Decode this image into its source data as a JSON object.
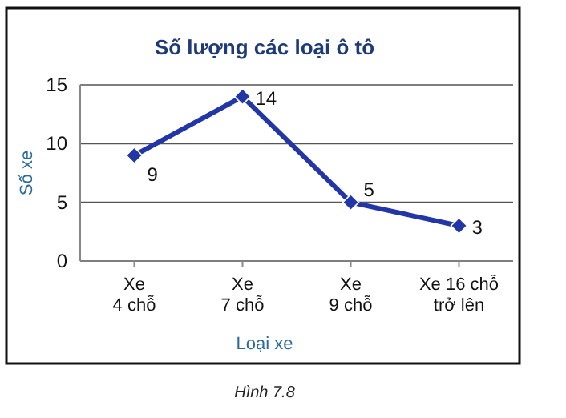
{
  "chart_data": {
    "type": "line",
    "title": "Số lượng các loại ô tô",
    "xlabel": "Loại xe",
    "ylabel": "Số xe",
    "annotations": [
      "Hình 7.8"
    ],
    "categories": [
      "Xe\n4 chỗ",
      "Xe\n7 chỗ",
      "Xe\n9 chỗ",
      "Xe 16 chỗ\ntrở lên"
    ],
    "series": [
      {
        "color": "#2236a8",
        "values": [
          9,
          14,
          5,
          3
        ]
      }
    ],
    "ylim": [
      0,
      15
    ],
    "yticks": [
      0,
      5,
      10,
      15
    ],
    "grid": "y",
    "marker": "diamond",
    "line_style": "solid",
    "data_labels": true
  }
}
